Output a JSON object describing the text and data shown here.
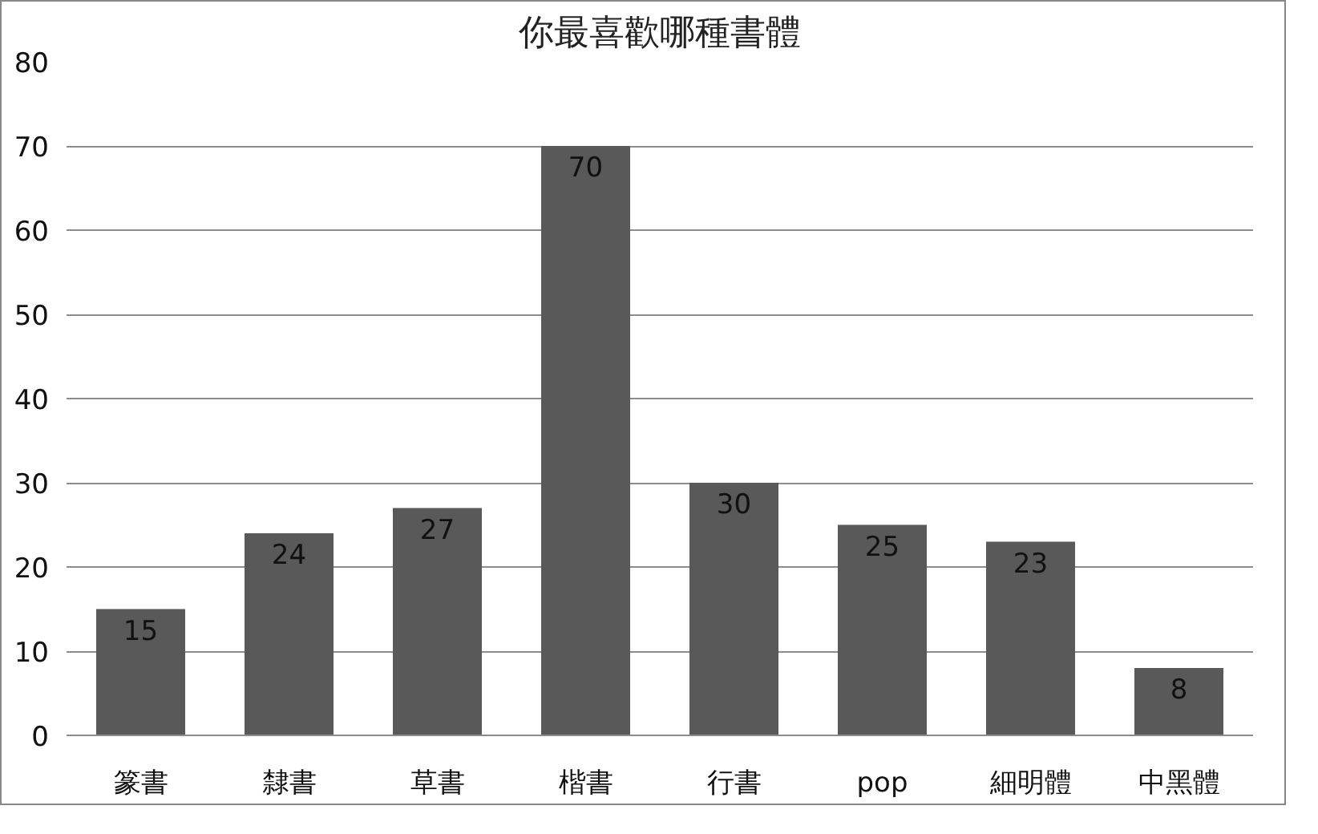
{
  "chart_data": {
    "type": "bar",
    "title": "你最喜歡哪種書體",
    "categories": [
      "篆書",
      "隸書",
      "草書",
      "楷書",
      "行書",
      "pop",
      "細明體",
      "中黑體"
    ],
    "values": [
      15,
      24,
      27,
      70,
      30,
      25,
      23,
      8
    ],
    "color": "#595959",
    "ylim": [
      0,
      80
    ],
    "yticks": [
      0,
      10,
      20,
      30,
      40,
      50,
      60,
      70,
      80
    ],
    "grid": "y",
    "data_labels": true
  }
}
